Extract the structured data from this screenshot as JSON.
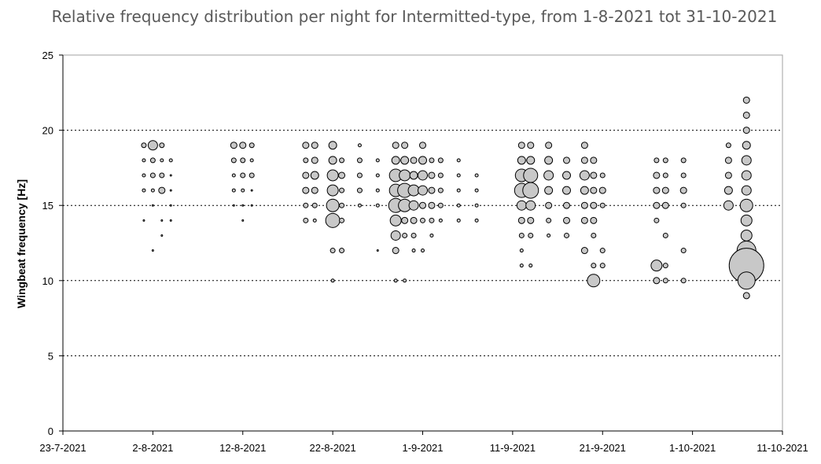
{
  "chart_data": {
    "type": "scatter",
    "title": "Relative frequency distribution per night for Intermitted-type, from 1-8-2021 tot 31-10-2021",
    "ylabel": "Wingbeat frequency [Hz]",
    "xlabel": "",
    "ylim": [
      0,
      25
    ],
    "yticks": [
      0,
      5,
      10,
      15,
      20,
      25
    ],
    "xlim": [
      "2021-07-23",
      "2021-10-11"
    ],
    "xtick_labels": [
      "23-7-2021",
      "2-8-2021",
      "12-8-2021",
      "22-8-2021",
      "1-9-2021",
      "11-9-2021",
      "21-9-2021",
      "1-10-2021",
      "11-10-2021"
    ],
    "xticks": [
      "2021-07-23",
      "2021-08-02",
      "2021-08-12",
      "2021-08-22",
      "2021-09-01",
      "2021-09-11",
      "2021-09-21",
      "2021-10-01",
      "2021-10-11"
    ],
    "grid": "horizontal dotted at 5, 10, 15, 20",
    "bubble_color": "#c8c8c8",
    "series": [
      {
        "x": [
          "2021-08-01",
          "2021-08-01",
          "2021-08-01",
          "2021-08-01",
          "2021-08-01",
          "2021-08-02",
          "2021-08-02",
          "2021-08-02",
          "2021-08-02",
          "2021-08-02",
          "2021-08-02",
          "2021-08-03",
          "2021-08-03",
          "2021-08-03",
          "2021-08-03",
          "2021-08-03",
          "2021-08-03",
          "2021-08-04",
          "2021-08-04",
          "2021-08-04",
          "2021-08-04",
          "2021-08-04",
          "2021-08-11",
          "2021-08-11",
          "2021-08-11",
          "2021-08-11",
          "2021-08-11",
          "2021-08-12",
          "2021-08-12",
          "2021-08-12",
          "2021-08-12",
          "2021-08-12",
          "2021-08-12",
          "2021-08-13",
          "2021-08-13",
          "2021-08-13",
          "2021-08-13",
          "2021-08-13",
          "2021-08-19",
          "2021-08-19",
          "2021-08-19",
          "2021-08-19",
          "2021-08-19",
          "2021-08-19",
          "2021-08-20",
          "2021-08-20",
          "2021-08-20",
          "2021-08-20",
          "2021-08-20",
          "2021-08-20",
          "2021-08-22",
          "2021-08-22",
          "2021-08-22",
          "2021-08-22",
          "2021-08-22",
          "2021-08-22",
          "2021-08-22",
          "2021-08-22",
          "2021-08-23",
          "2021-08-23",
          "2021-08-23",
          "2021-08-23",
          "2021-08-23",
          "2021-08-23",
          "2021-08-25",
          "2021-08-25",
          "2021-08-25",
          "2021-08-25",
          "2021-08-25",
          "2021-08-27",
          "2021-08-27",
          "2021-08-27",
          "2021-08-27",
          "2021-08-27",
          "2021-08-29",
          "2021-08-29",
          "2021-08-29",
          "2021-08-29",
          "2021-08-29",
          "2021-08-29",
          "2021-08-29",
          "2021-08-29",
          "2021-08-29",
          "2021-08-30",
          "2021-08-30",
          "2021-08-30",
          "2021-08-30",
          "2021-08-30",
          "2021-08-30",
          "2021-08-30",
          "2021-08-30",
          "2021-08-31",
          "2021-08-31",
          "2021-08-31",
          "2021-08-31",
          "2021-08-31",
          "2021-08-31",
          "2021-08-31",
          "2021-09-01",
          "2021-09-01",
          "2021-09-01",
          "2021-09-01",
          "2021-09-01",
          "2021-09-01",
          "2021-09-01",
          "2021-09-02",
          "2021-09-02",
          "2021-09-02",
          "2021-09-02",
          "2021-09-02",
          "2021-09-02",
          "2021-09-03",
          "2021-09-03",
          "2021-09-03",
          "2021-09-03",
          "2021-09-03",
          "2021-09-05",
          "2021-09-05",
          "2021-09-05",
          "2021-09-05",
          "2021-09-05",
          "2021-09-07",
          "2021-09-07",
          "2021-09-07",
          "2021-09-07",
          "2021-09-12",
          "2021-09-12",
          "2021-09-12",
          "2021-09-12",
          "2021-09-12",
          "2021-09-12",
          "2021-09-12",
          "2021-09-12",
          "2021-09-12",
          "2021-09-13",
          "2021-09-13",
          "2021-09-13",
          "2021-09-13",
          "2021-09-13",
          "2021-09-13",
          "2021-09-13",
          "2021-09-13",
          "2021-09-15",
          "2021-09-15",
          "2021-09-15",
          "2021-09-15",
          "2021-09-15",
          "2021-09-15",
          "2021-09-15",
          "2021-09-17",
          "2021-09-17",
          "2021-09-17",
          "2021-09-17",
          "2021-09-17",
          "2021-09-17",
          "2021-09-19",
          "2021-09-19",
          "2021-09-19",
          "2021-09-19",
          "2021-09-19",
          "2021-09-19",
          "2021-09-19",
          "2021-09-20",
          "2021-09-20",
          "2021-09-20",
          "2021-09-20",
          "2021-09-20",
          "2021-09-20",
          "2021-09-20",
          "2021-09-20",
          "2021-09-21",
          "2021-09-21",
          "2021-09-21",
          "2021-09-21",
          "2021-09-21",
          "2021-09-27",
          "2021-09-27",
          "2021-09-27",
          "2021-09-27",
          "2021-09-27",
          "2021-09-27",
          "2021-09-27",
          "2021-09-28",
          "2021-09-28",
          "2021-09-28",
          "2021-09-28",
          "2021-09-28",
          "2021-09-28",
          "2021-09-28",
          "2021-09-30",
          "2021-09-30",
          "2021-09-30",
          "2021-09-30",
          "2021-09-30",
          "2021-09-30",
          "2021-10-05",
          "2021-10-05",
          "2021-10-05",
          "2021-10-05",
          "2021-10-05",
          "2021-10-07",
          "2021-10-07",
          "2021-10-07",
          "2021-10-07",
          "2021-10-07",
          "2021-10-07",
          "2021-10-07",
          "2021-10-07",
          "2021-10-07",
          "2021-10-07",
          "2021-10-07",
          "2021-10-07",
          "2021-10-07",
          "2021-10-07"
        ],
        "y": [
          19,
          18,
          17,
          16,
          14,
          19,
          18,
          17,
          16,
          15,
          12,
          19,
          18,
          17,
          16,
          14,
          13,
          18,
          17,
          16,
          15,
          14,
          19,
          18,
          17,
          16,
          15,
          19,
          18,
          17,
          16,
          15,
          14,
          19,
          18,
          17,
          16,
          15,
          19,
          18,
          17,
          16,
          15,
          14,
          19,
          18,
          17,
          16,
          15,
          14,
          19,
          18,
          17,
          16,
          15,
          14,
          12,
          10,
          18,
          17,
          16,
          15,
          14,
          12,
          19,
          18,
          17,
          16,
          15,
          18,
          17,
          16,
          15,
          12,
          19,
          18,
          17,
          16,
          15,
          14,
          13,
          12,
          10,
          19,
          18,
          17,
          16,
          15,
          14,
          13,
          10,
          18,
          17,
          16,
          15,
          14,
          13,
          12,
          19,
          18,
          17,
          16,
          15,
          14,
          12,
          18,
          17,
          16,
          15,
          14,
          13,
          18,
          17,
          16,
          15,
          14,
          18,
          17,
          16,
          15,
          14,
          17,
          16,
          15,
          14,
          19,
          18,
          17,
          16,
          15,
          14,
          13,
          12,
          11,
          19,
          18,
          17,
          16,
          15,
          14,
          13,
          11,
          19,
          18,
          17,
          16,
          15,
          14,
          13,
          18,
          17,
          16,
          15,
          14,
          13,
          19,
          18,
          17,
          16,
          15,
          14,
          12,
          18,
          17,
          16,
          15,
          14,
          13,
          11,
          10,
          17,
          16,
          15,
          12,
          11,
          18,
          17,
          16,
          15,
          14,
          11,
          10,
          18,
          17,
          16,
          15,
          13,
          11,
          10,
          18,
          17,
          16,
          15,
          12,
          10,
          19,
          18,
          17,
          16,
          15,
          22,
          21,
          20,
          19,
          18,
          17,
          16,
          15,
          14,
          13,
          12,
          11,
          10,
          9
        ],
        "size": [
          3,
          2,
          2,
          2,
          1,
          6,
          3,
          3,
          2,
          1,
          1,
          3,
          2,
          3,
          4,
          1,
          1,
          2,
          1,
          1,
          1,
          1,
          4,
          3,
          2,
          2,
          1,
          4,
          3,
          3,
          2,
          1,
          1,
          3,
          2,
          3,
          1,
          1,
          4,
          3,
          4,
          4,
          3,
          3,
          4,
          4,
          5,
          4,
          3,
          2,
          5,
          5,
          7,
          7,
          8,
          9,
          3,
          2,
          3,
          4,
          3,
          3,
          3,
          3,
          2,
          3,
          3,
          3,
          2,
          2,
          2,
          2,
          2,
          1,
          4,
          5,
          8,
          8,
          9,
          7,
          6,
          4,
          2,
          4,
          5,
          7,
          9,
          8,
          4,
          3,
          2,
          4,
          5,
          7,
          6,
          4,
          3,
          2,
          4,
          5,
          6,
          6,
          4,
          3,
          2,
          3,
          4,
          4,
          4,
          3,
          2,
          3,
          3,
          3,
          3,
          2,
          2,
          2,
          2,
          2,
          2,
          2,
          2,
          2,
          2,
          4,
          5,
          8,
          9,
          6,
          4,
          3,
          2,
          2,
          4,
          5,
          9,
          10,
          6,
          4,
          3,
          2,
          4,
          5,
          6,
          5,
          4,
          3,
          2,
          4,
          5,
          5,
          4,
          4,
          3,
          4,
          4,
          6,
          5,
          4,
          4,
          4,
          4,
          4,
          4,
          4,
          4,
          3,
          3,
          8,
          3,
          4,
          3,
          3,
          3,
          3,
          4,
          4,
          4,
          3,
          7,
          4,
          3,
          3,
          4,
          4,
          3,
          3,
          3,
          3,
          3,
          4,
          3,
          3,
          3,
          3,
          4,
          4,
          5,
          6,
          4,
          4,
          4,
          5,
          6,
          6,
          6,
          8,
          7,
          7,
          12,
          22,
          11,
          4
        ]
      }
    ]
  }
}
